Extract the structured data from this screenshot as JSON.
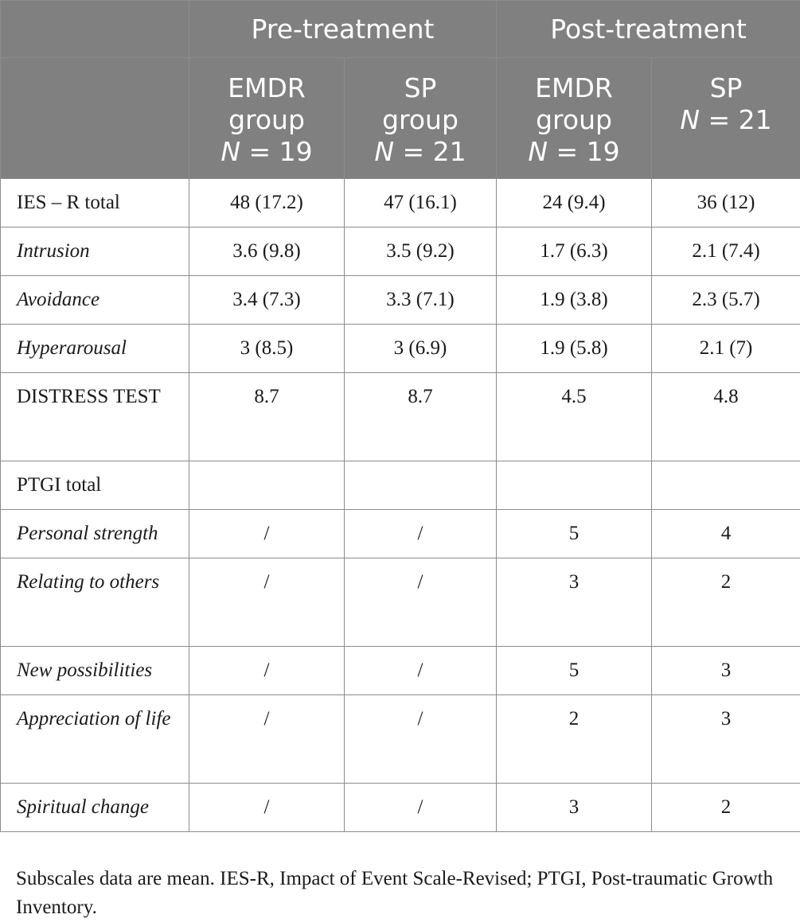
{
  "header": {
    "groups": [
      "Pre-treatment",
      "Post-treatment"
    ],
    "columns": [
      {
        "line1": "EMDR",
        "line2": "group",
        "n_label": "N",
        "n_value": " = 19"
      },
      {
        "line1": "SP",
        "line2": "group",
        "n_label": "N",
        "n_value": " = 21"
      },
      {
        "line1": "EMDR",
        "line2": "group",
        "n_label": "N",
        "n_value": " = 19"
      },
      {
        "line1": "SP",
        "line2": "",
        "n_label": "N",
        "n_value": " = 21"
      }
    ]
  },
  "rows": [
    {
      "label": "IES – R total",
      "italic": false,
      "cells": [
        "48 (17.2)",
        "47 (16.1)",
        "24 (9.4)",
        "36 (12)"
      ]
    },
    {
      "label": "Intrusion",
      "italic": true,
      "cells": [
        "3.6 (9.8)",
        "3.5 (9.2)",
        "1.7 (6.3)",
        "2.1 (7.4)"
      ]
    },
    {
      "label": "Avoidance",
      "italic": true,
      "cells": [
        "3.4 (7.3)",
        "3.3 (7.1)",
        "1.9 (3.8)",
        "2.3 (5.7)"
      ]
    },
    {
      "label": "Hyperarousal",
      "italic": true,
      "cells": [
        "3 (8.5)",
        "3 (6.9)",
        "1.9 (5.8)",
        "2.1 (7)"
      ]
    },
    {
      "label": "DISTRESS TEST",
      "italic": false,
      "cells": [
        "8.7",
        "8.7",
        "4.5",
        "4.8"
      ]
    },
    {
      "label": "PTGI total",
      "italic": false,
      "cells": [
        "",
        "",
        "",
        ""
      ]
    },
    {
      "label": "Personal strength",
      "italic": true,
      "cells": [
        "/",
        "/",
        "5",
        "4"
      ]
    },
    {
      "label": "Relating to others",
      "italic": true,
      "cells": [
        "/",
        "/",
        "3",
        "2"
      ]
    },
    {
      "label": "New possibilities",
      "italic": true,
      "cells": [
        "/",
        "/",
        "5",
        "3"
      ]
    },
    {
      "label": "Appreciation of life",
      "italic": true,
      "cells": [
        "/",
        "/",
        "2",
        "3"
      ]
    },
    {
      "label": "Spiritual change",
      "italic": true,
      "cells": [
        "/",
        "/",
        "3",
        "2"
      ]
    }
  ],
  "footnote": "Subscales data are mean. IES-R, Impact of Event Scale-Revised; PTGI, Post-traumatic Growth Inventory."
}
